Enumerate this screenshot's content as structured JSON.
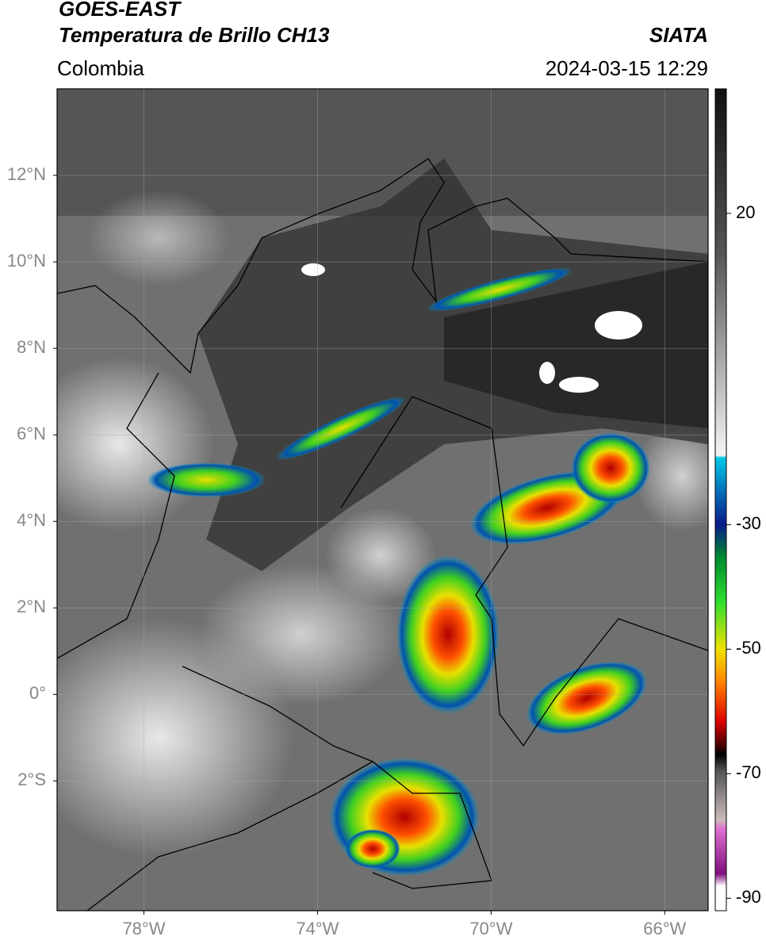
{
  "header": {
    "title": "GOES-EAST",
    "subtitle": "Temperatura de Brillo CH13",
    "region": "Colombia",
    "source": "SIATA",
    "datetime": "2024-03-15 12:29"
  },
  "map": {
    "xlim": [
      -80,
      -65
    ],
    "ylim": [
      -5,
      14
    ],
    "yticks": [
      {
        "value": 12,
        "label": "12°N"
      },
      {
        "value": 10,
        "label": "10°N"
      },
      {
        "value": 8,
        "label": "8°N"
      },
      {
        "value": 6,
        "label": "6°N"
      },
      {
        "value": 4,
        "label": "4°N"
      },
      {
        "value": 2,
        "label": "2°N"
      },
      {
        "value": 0,
        "label": "0°"
      },
      {
        "value": -2,
        "label": "2°S"
      }
    ],
    "xticks": [
      {
        "value": -78,
        "label": "78°W"
      },
      {
        "value": -74,
        "label": "74°W"
      },
      {
        "value": -70,
        "label": "70°W"
      },
      {
        "value": -66,
        "label": "66°W"
      }
    ]
  },
  "colorbar": {
    "lim": [
      -92,
      40
    ],
    "ticks": [
      20,
      -30,
      -50,
      -70,
      -90
    ]
  }
}
